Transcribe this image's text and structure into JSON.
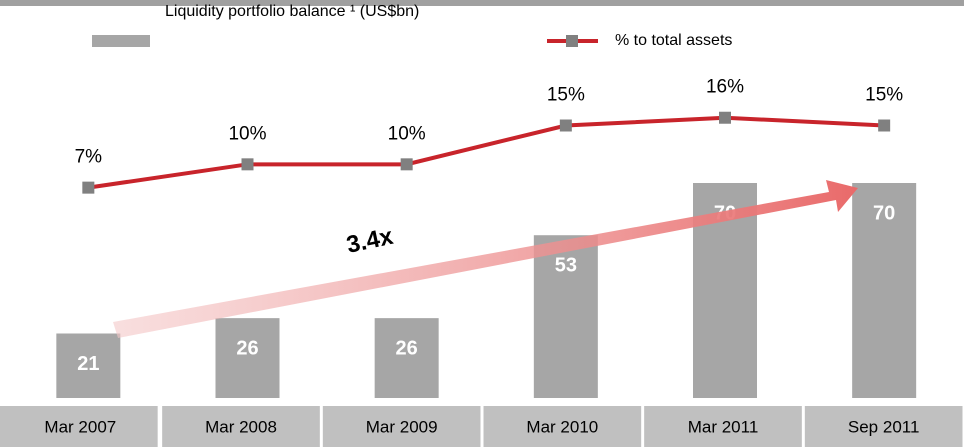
{
  "chart_data": {
    "type": "bar_line",
    "categories": [
      "Mar 2007",
      "Mar 2008",
      "Mar 2009",
      "Mar 2010",
      "Mar 2011",
      "Sep 2011"
    ],
    "series": [
      {
        "name": "Liquidity portfolio balance ¹ (US$bn)",
        "color": "#a6a6a6",
        "type": "bar",
        "values": [
          21,
          26,
          26,
          53,
          70,
          70
        ]
      },
      {
        "name": "% to total assets",
        "color": "#c8242b",
        "type": "line",
        "axis": "y2",
        "marker_color": "#808080",
        "values": [
          7,
          10,
          10,
          15,
          16,
          15
        ],
        "value_labels": [
          "7%",
          "10%",
          "10%",
          "15%",
          "16%",
          "15%"
        ]
      }
    ],
    "ylim": [
      0,
      70
    ],
    "y2lim": [
      0,
      30
    ],
    "annotation": "3.4x"
  }
}
